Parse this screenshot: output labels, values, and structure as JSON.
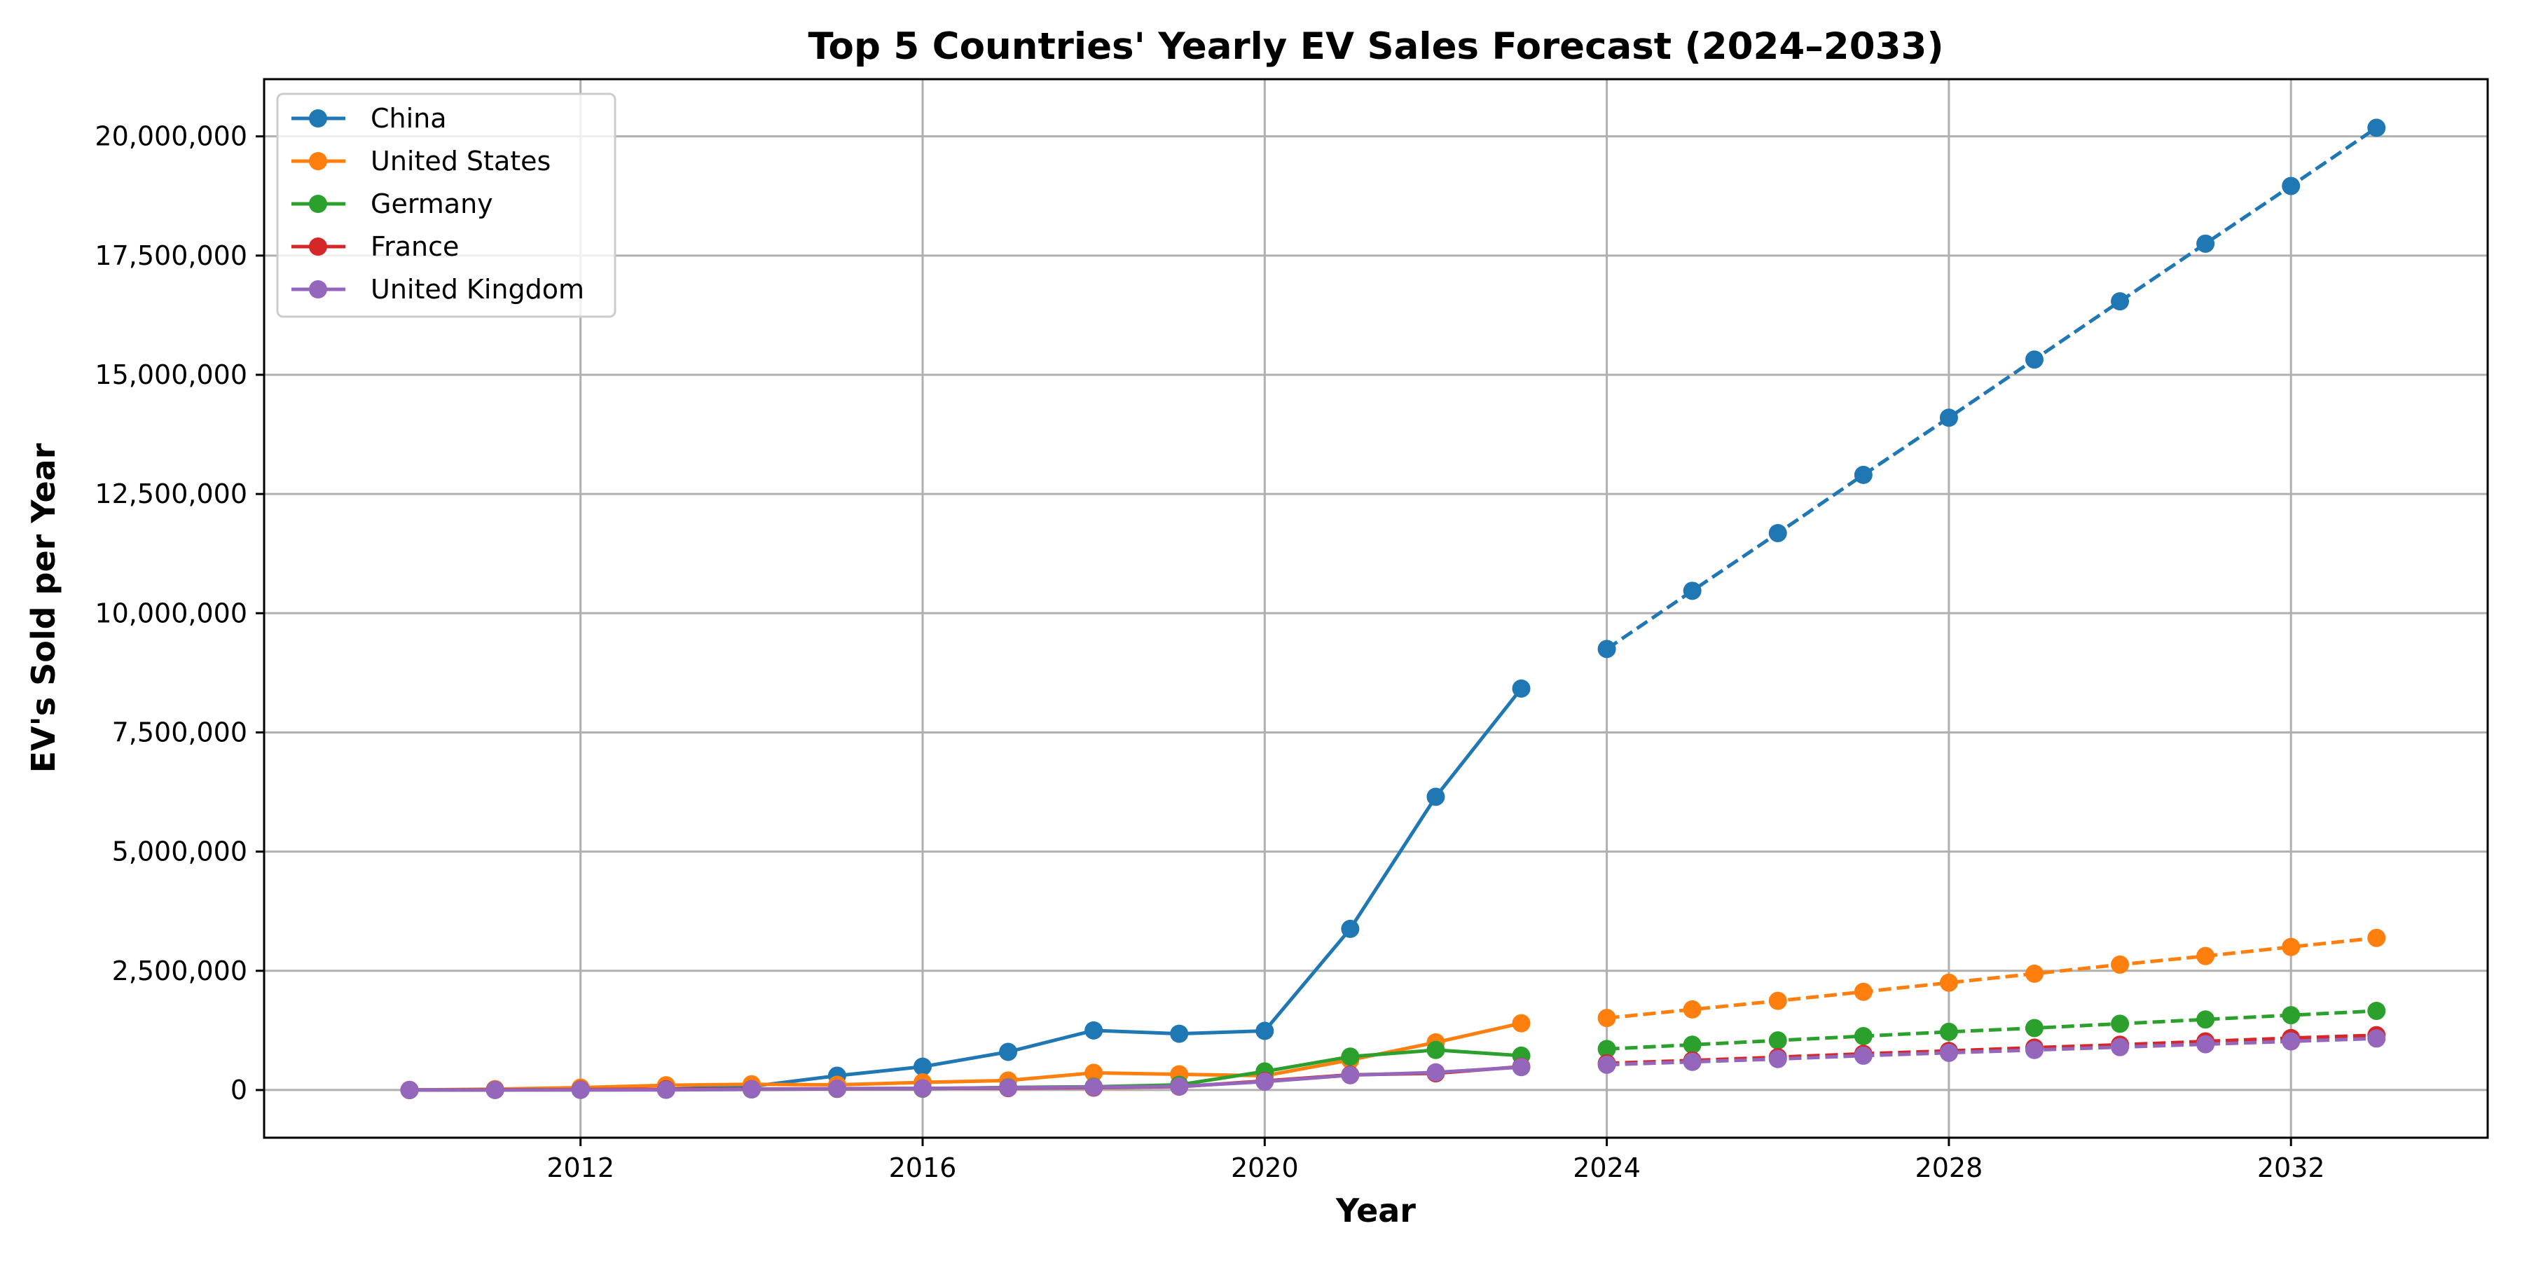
{
  "chart_data": {
    "type": "line",
    "title": "Top 5 Countries' Yearly EV Sales Forecast (2024–2033)",
    "xlabel": "Year",
    "ylabel": "EV's Sold per Year",
    "xlim": [
      2008.3,
      2034.3
    ],
    "ylim": [
      -1000000,
      21200000
    ],
    "xticks": [
      2012,
      2016,
      2020,
      2024,
      2028,
      2032
    ],
    "xtick_labels": [
      "2012",
      "2016",
      "2020",
      "2024",
      "2028",
      "2032"
    ],
    "yticks": [
      0,
      2500000,
      5000000,
      7500000,
      10000000,
      12500000,
      15000000,
      17500000,
      20000000
    ],
    "ytick_labels": [
      "0",
      "2,500,000",
      "5,000,000",
      "7,500,000",
      "10,000,000",
      "12,500,000",
      "15,000,000",
      "17,500,000",
      "20,000,000"
    ],
    "grid": true,
    "legend_position": "top-left",
    "historical_years": [
      2010,
      2011,
      2012,
      2013,
      2014,
      2015,
      2016,
      2017,
      2018,
      2019,
      2020,
      2021,
      2022,
      2023
    ],
    "forecast_years": [
      2024,
      2025,
      2026,
      2027,
      2028,
      2029,
      2030,
      2031,
      2032,
      2033
    ],
    "series": [
      {
        "name": "China",
        "color": "#1f77b4",
        "historical": [
          0,
          5000,
          10000,
          15000,
          75000,
          300000,
          490000,
          800000,
          1250000,
          1180000,
          1240000,
          3380000,
          6150000,
          8420000
        ],
        "forecast": [
          9250000,
          10470000,
          11680000,
          12900000,
          14100000,
          15320000,
          16540000,
          17750000,
          18960000,
          20180000
        ]
      },
      {
        "name": "United States",
        "color": "#ff7f0e",
        "historical": [
          0,
          20000,
          50000,
          100000,
          120000,
          110000,
          160000,
          200000,
          360000,
          330000,
          300000,
          630000,
          1000000,
          1400000
        ],
        "forecast": [
          1510000,
          1690000,
          1870000,
          2060000,
          2250000,
          2440000,
          2630000,
          2810000,
          3000000,
          3190000
        ]
      },
      {
        "name": "Germany",
        "color": "#2ca02c",
        "historical": [
          0,
          2000,
          3000,
          6000,
          12000,
          24000,
          27000,
          55000,
          70000,
          110000,
          390000,
          700000,
          840000,
          720000
        ],
        "forecast": [
          860000,
          950000,
          1040000,
          1130000,
          1220000,
          1300000,
          1390000,
          1480000,
          1570000,
          1660000
        ]
      },
      {
        "name": "France",
        "color": "#d62728",
        "historical": [
          0,
          3000,
          8000,
          15000,
          20000,
          27000,
          35000,
          40000,
          50000,
          70000,
          190000,
          320000,
          350000,
          490000
        ],
        "forecast": [
          560000,
          620000,
          690000,
          760000,
          820000,
          890000,
          950000,
          1020000,
          1090000,
          1150000
        ]
      },
      {
        "name": "United Kingdom",
        "color": "#9467bd",
        "historical": [
          0,
          1000,
          3000,
          4000,
          15000,
          30000,
          35000,
          48000,
          60000,
          75000,
          175000,
          310000,
          370000,
          480000
        ],
        "forecast": [
          530000,
          590000,
          650000,
          720000,
          780000,
          840000,
          900000,
          960000,
          1020000,
          1080000
        ]
      }
    ]
  }
}
